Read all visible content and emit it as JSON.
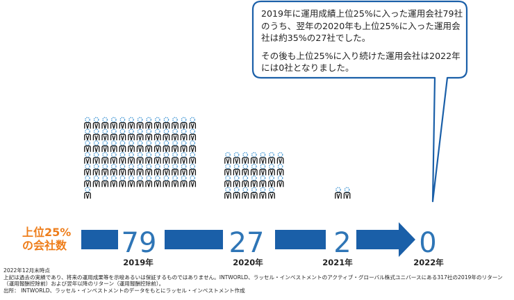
{
  "callout": {
    "paragraph1": "2019年に運用成績上位25%に入った運用会社79社のうち、翌年の2020年も上位25%に入った運用会社は約35%の27社でした。",
    "paragraph2": "その後も上位25%に入り続けた運用会社は2022年には0社となりました。"
  },
  "side_label": {
    "line1": "上位25%",
    "line2": "の会社数"
  },
  "chart_data": {
    "type": "pictograph",
    "categories": [
      "2019年",
      "2020年",
      "2021年",
      "2022年"
    ],
    "values": [
      79,
      27,
      2,
      0
    ],
    "value_labels": [
      "79",
      "27",
      "2",
      "0"
    ],
    "icon": "person-icon"
  },
  "notes": {
    "line1": "2022年12月末時点",
    "line2": "上記は過去の実績であり、将来の運用成果等を示唆あるいは保証するものではありません。INTWORLD、ラッセル・インベストメントのアクティブ・グローバル株式ユニバースにある317社の2019年のリターン（運用報酬控除前）および翌年以降のリターン（運用報酬控除前）。",
    "line3": "出所： INTWORLD、ラッセル・インベストメントのデータをもとにラッセル・インベストメント作成"
  },
  "colors": {
    "arrow_blue": "#1a5fa8",
    "label_blue": "#2e75b6",
    "orange": "#ee7d1a",
    "icon_head": "#4a9bd6",
    "text_dark": "#222222"
  }
}
